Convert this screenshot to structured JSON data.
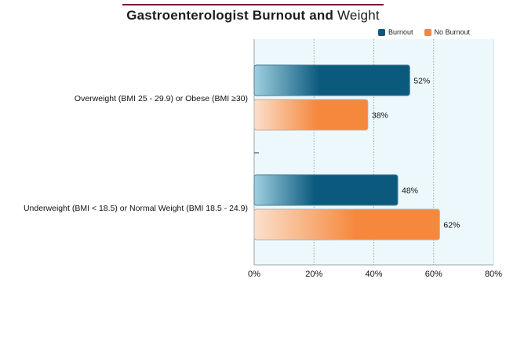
{
  "chart_data": {
    "type": "bar",
    "orientation": "horizontal",
    "title_bold": "Gastroenterologist Burnout and",
    "title_light": "Weight",
    "categories": [
      "Overweight (BMI 25 - 29.9) or Obese (BMI ≥30)",
      "Underweight (BMI < 18.5) or Normal Weight (BMI 18.5 - 24.9)"
    ],
    "series": [
      {
        "name": "Burnout",
        "values": [
          52,
          48
        ],
        "color": "#0b5a7e"
      },
      {
        "name": "No Burnout",
        "values": [
          38,
          62
        ],
        "color": "#f5883d"
      }
    ],
    "value_labels": [
      [
        "52%",
        "48%"
      ],
      [
        "38%",
        "62%"
      ]
    ],
    "xlim": [
      0,
      80
    ],
    "x_ticks": [
      "0%",
      "20%",
      "40%",
      "60%",
      "80%"
    ],
    "grid": true,
    "legend_position": "top-right",
    "background_color": "#edf8fd"
  }
}
